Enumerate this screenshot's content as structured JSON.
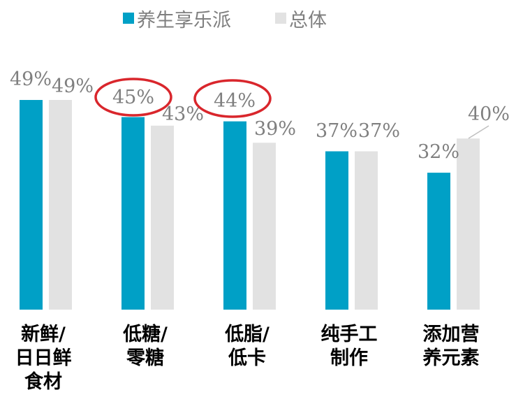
{
  "chart_data": {
    "type": "bar",
    "title": "",
    "xlabel": "",
    "ylabel": "",
    "ylim": [
      0,
      60
    ],
    "grid": false,
    "legend_position": "top",
    "categories": [
      [
        "新鲜/",
        "日日鲜",
        "食材"
      ],
      [
        "低糖/",
        "零糖"
      ],
      [
        "低脂/",
        "低卡"
      ],
      [
        "纯手工",
        "制作"
      ],
      [
        "添加营",
        "养元素"
      ]
    ],
    "series": [
      {
        "name": "养生享乐派",
        "color": "#00A0C6",
        "values": [
          49,
          45,
          44,
          37,
          32
        ],
        "labels": [
          "49%",
          "45%",
          "44%",
          "37%",
          "32%"
        ]
      },
      {
        "name": "总体",
        "color": "#E2E2E2",
        "values": [
          49,
          43,
          39,
          37,
          40
        ],
        "labels": [
          "49%",
          "43%",
          "39%",
          "37%",
          "40%"
        ]
      }
    ],
    "highlight_color": "#D9262C",
    "highlighted_points": [
      {
        "series": 0,
        "category": 1
      },
      {
        "series": 0,
        "category": 2
      }
    ]
  }
}
